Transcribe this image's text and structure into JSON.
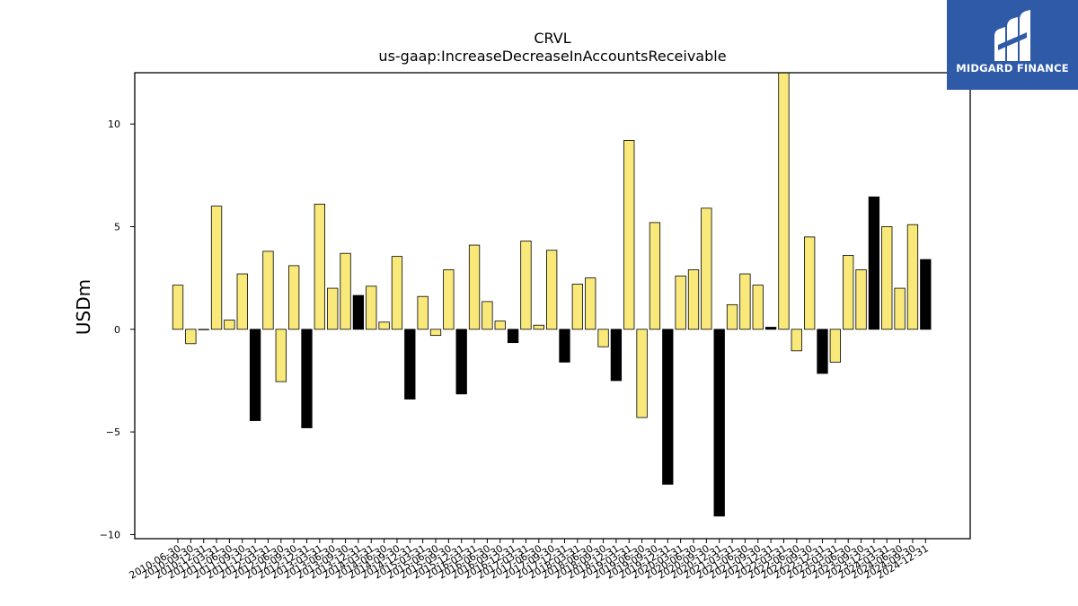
{
  "chart_data": {
    "type": "bar",
    "title": "CRVL",
    "subtitle": "us-gaap:IncreaseDecreaseInAccountsReceivable",
    "xlabel": "",
    "ylabel": "USDm",
    "ylim": [
      -10.2,
      12.5
    ],
    "yticks": [
      -10,
      -5,
      0,
      5,
      10
    ],
    "ytick_labels": [
      "−10",
      "−5",
      "0",
      "5",
      "10"
    ],
    "grid": false,
    "colors": {
      "default": "#f9e97a",
      "highlight": "#000000",
      "edge": "#000000"
    },
    "categories": [
      "2010-06-30",
      "2010-09-30",
      "2010-12-31",
      "2011-03-31",
      "2011-06-30",
      "2011-09-30",
      "2011-12-31",
      "2012-03-31",
      "2012-06-30",
      "2012-09-30",
      "2012-12-31",
      "2013-03-31",
      "2013-06-30",
      "2013-09-30",
      "2013-12-31",
      "2014-03-31",
      "2014-06-30",
      "2014-09-30",
      "2014-12-31",
      "2015-03-31",
      "2015-06-30",
      "2015-09-30",
      "2015-12-31",
      "2016-03-31",
      "2016-06-30",
      "2016-09-30",
      "2016-12-31",
      "2017-03-31",
      "2017-06-30",
      "2017-09-30",
      "2017-12-31",
      "2018-03-31",
      "2018-06-30",
      "2018-09-30",
      "2018-12-31",
      "2019-03-31",
      "2019-06-30",
      "2019-09-30",
      "2019-12-31",
      "2020-03-31",
      "2020-06-30",
      "2020-09-30",
      "2020-12-31",
      "2021-03-31",
      "2021-06-30",
      "2021-09-30",
      "2021-12-31",
      "2022-03-31",
      "2022-06-30",
      "2022-09-30",
      "2022-12-31",
      "2023-03-31",
      "2023-06-30",
      "2023-09-30",
      "2023-12-31",
      "2024-03-31",
      "2024-06-30",
      "2024-09-30",
      "2024-12-31"
    ],
    "values": [
      2.15,
      -0.7,
      0,
      6.0,
      0.45,
      2.7,
      -4.45,
      3.8,
      -2.55,
      3.1,
      -4.8,
      6.1,
      2.0,
      3.7,
      1.65,
      2.1,
      0.35,
      3.55,
      -3.4,
      1.6,
      -0.3,
      2.9,
      -3.15,
      4.1,
      1.35,
      0.4,
      -0.65,
      4.3,
      0.2,
      3.85,
      -1.6,
      2.2,
      2.5,
      -0.85,
      -2.5,
      9.2,
      -4.3,
      5.2,
      -7.55,
      2.6,
      2.9,
      5.9,
      -9.1,
      1.2,
      2.7,
      2.15,
      0.1,
      12.5,
      -1.05,
      4.5,
      -2.15,
      -1.6,
      3.6,
      2.9,
      6.45,
      5.0,
      2.0,
      5.1,
      3.4
    ],
    "highlight": [
      false,
      false,
      false,
      false,
      false,
      false,
      true,
      false,
      false,
      false,
      true,
      false,
      false,
      false,
      true,
      false,
      false,
      false,
      true,
      false,
      false,
      false,
      true,
      false,
      false,
      false,
      true,
      false,
      false,
      false,
      true,
      false,
      false,
      false,
      true,
      false,
      false,
      false,
      true,
      false,
      false,
      false,
      true,
      false,
      false,
      false,
      true,
      false,
      false,
      false,
      true,
      false,
      false,
      false,
      true,
      false,
      false,
      false,
      true
    ]
  },
  "logo": {
    "text": "MIDGARD FINANCE",
    "color": "#2e5aa8"
  }
}
